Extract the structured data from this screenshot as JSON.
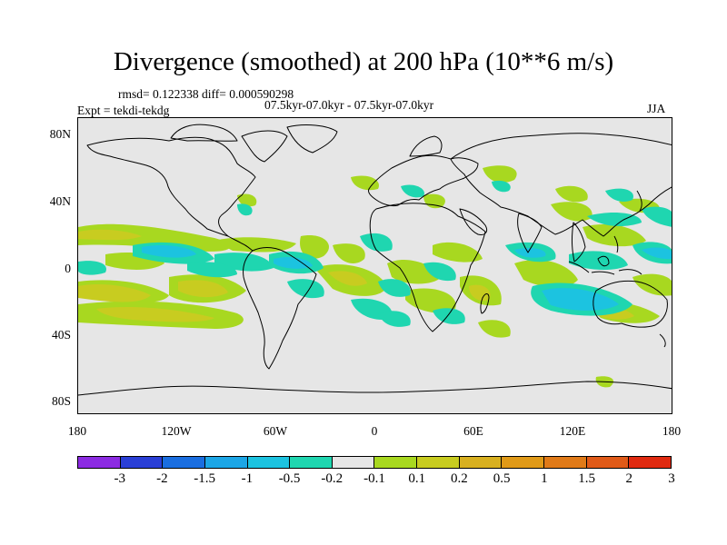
{
  "title": "Divergence (smoothed) at 200 hPa (10**6 m/s)",
  "stats_text": "rmsd= 0.122338 diff= 0.000590298",
  "period_text": "07.5kyr-07.0kyr - 07.5kyr-07.0kyr",
  "experiment_text": "Expt = tekdi-tekdg",
  "season": "JJA",
  "lat_labels": [
    "80N",
    "40N",
    "0",
    "40S",
    "80S"
  ],
  "lon_labels": [
    "180",
    "120W",
    "60W",
    "0",
    "60E",
    "120E",
    "180"
  ],
  "colorbar": {
    "colors": [
      "#8c2be2",
      "#2a3fd6",
      "#1a6ee0",
      "#1ca6e6",
      "#1cc3e0",
      "#1fd6b0",
      "#e6e6e6",
      "#a8d820",
      "#c8cc20",
      "#d8b020",
      "#e09a18",
      "#e07a18",
      "#e05a18",
      "#e02a10"
    ],
    "labels": [
      "-3",
      "-2",
      "-1.5",
      "-1",
      "-0.5",
      "-0.2",
      "-0.1",
      "0.1",
      "0.2",
      "0.5",
      "1",
      "1.5",
      "2",
      "3"
    ]
  }
}
